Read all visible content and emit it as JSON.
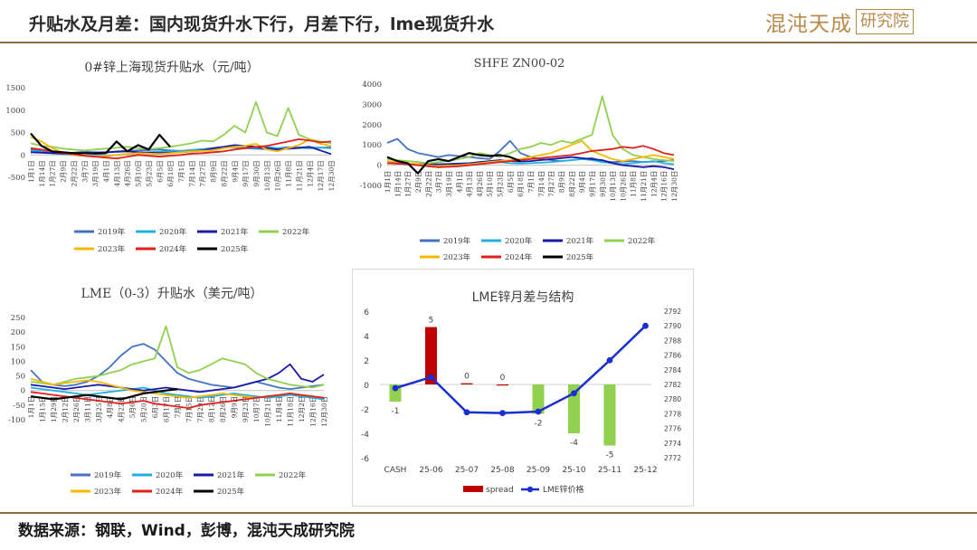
{
  "header": {
    "title": "升贴水及月差：国内现货升水下行，月差下行，lme现货升水",
    "logo_main": "混沌天成",
    "logo_box": "研究院"
  },
  "footer": {
    "source": "数据来源：钢联，Wind，彭博，混沌天成研究院"
  },
  "colors": {
    "2019年": "#4472c4",
    "2020年": "#22b0e0",
    "2021年": "#1a1aa8",
    "2022年": "#92d050",
    "2023年": "#f5b800",
    "2024年": "#e0201c",
    "2025年": "#000000",
    "accent": "#8c6d43",
    "spread": "#c00000",
    "spread_pos": "#c00000",
    "spread_neg": "#92d050",
    "price_line": "#1a2fd0"
  },
  "chart_data": [
    {
      "type": "line",
      "title": "0#锌上海现货升贴水（元/吨）",
      "xlabel": "",
      "ylabel": "",
      "ylim": [
        -500,
        1500
      ],
      "y_ticks": [
        "1500",
        "1000",
        "500",
        "0",
        "-500"
      ],
      "x_ticks": [
        "1月1日",
        "1月14日",
        "1月27日",
        "2月9日",
        "2月22日",
        "3月7日",
        "3月19日",
        "4月1日",
        "4月13日",
        "4月26日",
        "5月10日",
        "5月23日",
        "6月5日",
        "6月18日",
        "7月1日",
        "7月14日",
        "7月27日",
        "8月9日",
        "8月22日",
        "9月4日",
        "9月17日",
        "9月30日",
        "10月13日",
        "10月26日",
        "11月8日",
        "11月21日",
        "12月4日",
        "12月17日",
        "12月30日"
      ],
      "grid": false,
      "legend": "bottom",
      "series": [
        {
          "name": "2019年",
          "values": [
            120,
            80,
            60,
            40,
            50,
            70,
            60,
            50,
            80,
            90,
            100,
            110,
            120,
            100,
            90,
            100,
            120,
            140,
            160,
            180,
            150,
            140,
            130,
            150,
            170,
            160,
            150,
            160,
            170
          ]
        },
        {
          "name": "2020年",
          "values": [
            100,
            60,
            40,
            20,
            0,
            -20,
            -30,
            -20,
            0,
            20,
            40,
            60,
            70,
            80,
            90,
            110,
            130,
            150,
            160,
            170,
            150,
            160,
            180,
            150,
            140,
            150,
            170,
            160,
            150
          ]
        },
        {
          "name": "2021年",
          "values": [
            60,
            50,
            40,
            30,
            30,
            40,
            50,
            60,
            70,
            80,
            60,
            50,
            40,
            50,
            60,
            80,
            100,
            150,
            180,
            220,
            200,
            180,
            150,
            120,
            140,
            160,
            180,
            100,
            20
          ]
        },
        {
          "name": "2022年",
          "values": [
            260,
            200,
            180,
            140,
            120,
            100,
            120,
            140,
            160,
            180,
            150,
            130,
            150,
            180,
            220,
            260,
            320,
            300,
            450,
            650,
            500,
            1180,
            500,
            420,
            1050,
            450,
            350,
            300,
            260
          ]
        },
        {
          "name": "2023年",
          "values": [
            400,
            300,
            150,
            50,
            0,
            -20,
            -40,
            -30,
            0,
            20,
            40,
            30,
            20,
            40,
            60,
            80,
            90,
            100,
            150,
            180,
            200,
            250,
            120,
            80,
            150,
            220,
            350,
            250,
            200
          ]
        },
        {
          "name": "2024年",
          "values": [
            150,
            120,
            80,
            40,
            20,
            -20,
            -40,
            -60,
            -80,
            -40,
            0,
            -20,
            -40,
            -20,
            0,
            30,
            40,
            60,
            80,
            120,
            150,
            180,
            200,
            250,
            300,
            350,
            320,
            280,
            300
          ]
        },
        {
          "name": "2025年",
          "values": [
            480,
            200,
            80,
            60,
            40,
            40,
            30,
            40,
            300,
            80,
            220,
            120,
            450,
            180
          ]
        }
      ]
    },
    {
      "type": "line",
      "title": "SHFE ZN00-02",
      "xlabel": "",
      "ylabel": "",
      "ylim": [
        -1000,
        4000
      ],
      "y_ticks": [
        "4000",
        "3000",
        "2000",
        "1000",
        "0",
        "-1000"
      ],
      "x_ticks": [
        "1月1日",
        "1月14日",
        "1月27日",
        "2月9日",
        "2月22日",
        "3月7日",
        "3月19日",
        "4月1日",
        "4月13日",
        "4月26日",
        "5月10日",
        "5月23日",
        "6月5日",
        "6月18日",
        "7月1日",
        "7月14日",
        "7月27日",
        "8月9日",
        "8月22日",
        "9月4日",
        "9月17日",
        "9月30日",
        "10月13日",
        "10月26日",
        "11月8日",
        "11月21日",
        "12月4日",
        "12月16日",
        "12月30日"
      ],
      "grid": false,
      "legend": "bottom",
      "series": [
        {
          "name": "2019年",
          "values": [
            1100,
            1300,
            800,
            600,
            500,
            400,
            500,
            450,
            400,
            350,
            300,
            700,
            1200,
            600,
            400,
            300,
            250,
            200,
            250,
            300,
            350,
            200,
            150,
            180,
            200,
            150,
            180,
            200,
            250
          ]
        },
        {
          "name": "2020年",
          "values": [
            200,
            100,
            50,
            0,
            -50,
            -100,
            -80,
            -50,
            0,
            50,
            100,
            150,
            100,
            80,
            100,
            120,
            150,
            200,
            250,
            300,
            250,
            150,
            100,
            50,
            100,
            150,
            200,
            100,
            50
          ]
        },
        {
          "name": "2021年",
          "values": [
            100,
            80,
            60,
            50,
            40,
            50,
            60,
            80,
            100,
            150,
            200,
            250,
            200,
            180,
            200,
            250,
            300,
            350,
            400,
            350,
            300,
            250,
            100,
            0,
            -50,
            -100,
            -50,
            -100,
            -200
          ]
        },
        {
          "name": "2022年",
          "values": [
            300,
            250,
            200,
            150,
            100,
            150,
            200,
            300,
            400,
            600,
            500,
            400,
            600,
            800,
            900,
            1100,
            1000,
            1200,
            1100,
            1300,
            1500,
            3400,
            1500,
            800,
            500,
            400,
            300,
            250,
            200
          ]
        },
        {
          "name": "2023年",
          "values": [
            200,
            150,
            100,
            50,
            0,
            -50,
            -20,
            0,
            50,
            100,
            150,
            200,
            250,
            300,
            400,
            500,
            600,
            800,
            1000,
            1200,
            700,
            500,
            300,
            200,
            300,
            400,
            500,
            400,
            300
          ]
        },
        {
          "name": "2024年",
          "values": [
            100,
            80,
            50,
            0,
            -50,
            -100,
            -80,
            -50,
            0,
            50,
            100,
            150,
            200,
            250,
            300,
            350,
            400,
            450,
            500,
            600,
            700,
            750,
            800,
            900,
            850,
            950,
            800,
            600,
            500
          ]
        },
        {
          "name": "2025年",
          "values": [
            400,
            200,
            100,
            -400,
            200,
            300,
            200,
            400,
            600,
            500,
            450,
            500,
            400,
            200
          ]
        }
      ]
    },
    {
      "type": "line",
      "title": "LME（0-3）升贴水（美元/吨）",
      "xlabel": "",
      "ylabel": "",
      "ylim": [
        -100,
        250
      ],
      "y_ticks": [
        "250",
        "200",
        "150",
        "100",
        "50",
        "0",
        "-50",
        "-100"
      ],
      "x_ticks": [
        "1月1日",
        "1月15日",
        "1月29日",
        "2月12日",
        "2月26日",
        "3月11日",
        "3月25日",
        "4月8日",
        "4月22日",
        "5月6日",
        "5月20日",
        "6月3日",
        "6月17日",
        "7月1日",
        "7月15日",
        "7月29日",
        "8月12日",
        "8月26日",
        "9月9日",
        "9月23日",
        "10月7日",
        "10月21日",
        "11月4日",
        "11月18日",
        "12月2日",
        "12月16日",
        "12月30日"
      ],
      "grid": false,
      "legend": "bottom",
      "series": [
        {
          "name": "2019年",
          "values": [
            70,
            30,
            20,
            15,
            20,
            30,
            50,
            80,
            120,
            150,
            160,
            140,
            100,
            60,
            40,
            30,
            20,
            15,
            10,
            20,
            30,
            20,
            10,
            5,
            10,
            15,
            20
          ]
        },
        {
          "name": "2020年",
          "values": [
            10,
            5,
            0,
            -5,
            -10,
            -15,
            -10,
            -5,
            0,
            5,
            10,
            0,
            -10,
            -15,
            -20,
            -25,
            -20,
            -15,
            -10,
            -15,
            -20,
            -25,
            -20,
            -15,
            -20,
            -25,
            -30
          ]
        },
        {
          "name": "2021年",
          "values": [
            20,
            15,
            10,
            5,
            10,
            15,
            20,
            15,
            10,
            5,
            0,
            5,
            10,
            5,
            0,
            -5,
            0,
            5,
            10,
            20,
            30,
            40,
            60,
            90,
            40,
            30,
            55
          ]
        },
        {
          "name": "2022年",
          "values": [
            30,
            25,
            20,
            30,
            40,
            45,
            50,
            60,
            70,
            90,
            100,
            110,
            220,
            80,
            60,
            70,
            90,
            110,
            100,
            90,
            60,
            40,
            30,
            20,
            15,
            10,
            20
          ]
        },
        {
          "name": "2023年",
          "values": [
            40,
            30,
            20,
            25,
            30,
            35,
            30,
            20,
            10,
            0,
            -5,
            -10,
            -15,
            -20,
            -25,
            -20,
            -15,
            -10,
            -15,
            -20,
            -25,
            -20,
            -15,
            -10,
            -15,
            -20,
            -25
          ]
        },
        {
          "name": "2024年",
          "values": [
            -5,
            -10,
            -15,
            -20,
            -25,
            -30,
            -35,
            -40,
            -45,
            -40,
            -35,
            -45,
            -50,
            -55,
            -60,
            -50,
            -45,
            -40,
            -35,
            -30,
            -25,
            -20,
            -15,
            -10,
            -15,
            -20,
            -25
          ]
        },
        {
          "name": "2025年",
          "values": [
            -20,
            -25,
            -30,
            -25,
            -20,
            -15,
            -20,
            -25,
            -30,
            -20,
            -10,
            -5,
            0,
            5
          ]
        }
      ]
    },
    {
      "type": "bar+line",
      "title": "LME锌月差与结构",
      "categories": [
        "CASH",
        "25-06",
        "25-07",
        "25-08",
        "25-09",
        "25-10",
        "25-11",
        "25-12"
      ],
      "series": [
        {
          "name": "spread",
          "type": "bar",
          "axis": "left",
          "values": [
            -1.4,
            4.7,
            0.1,
            0,
            -2.4,
            -4.0,
            -5.0,
            null
          ],
          "labels": [
            "-1",
            "5",
            "0",
            "0",
            "-2",
            "-4",
            "-5",
            ""
          ]
        },
        {
          "name": "LME锌价格",
          "type": "line",
          "axis": "right",
          "values": [
            2781.5,
            2783.0,
            2778.2,
            2778.1,
            2778.3,
            2780.8,
            2785.3,
            2790.0
          ]
        }
      ],
      "ylim_left": [
        -6,
        6
      ],
      "y_ticks_left": [
        "6",
        "4",
        "2",
        "0",
        "-2",
        "-4",
        "-6"
      ],
      "ylim_right": [
        2772,
        2792
      ],
      "y_ticks_right": [
        "2792",
        "2790",
        "2788",
        "2786",
        "2784",
        "2782",
        "2780",
        "2778",
        "2776",
        "2774",
        "2772"
      ],
      "grid": false,
      "legend": "bottom"
    }
  ]
}
